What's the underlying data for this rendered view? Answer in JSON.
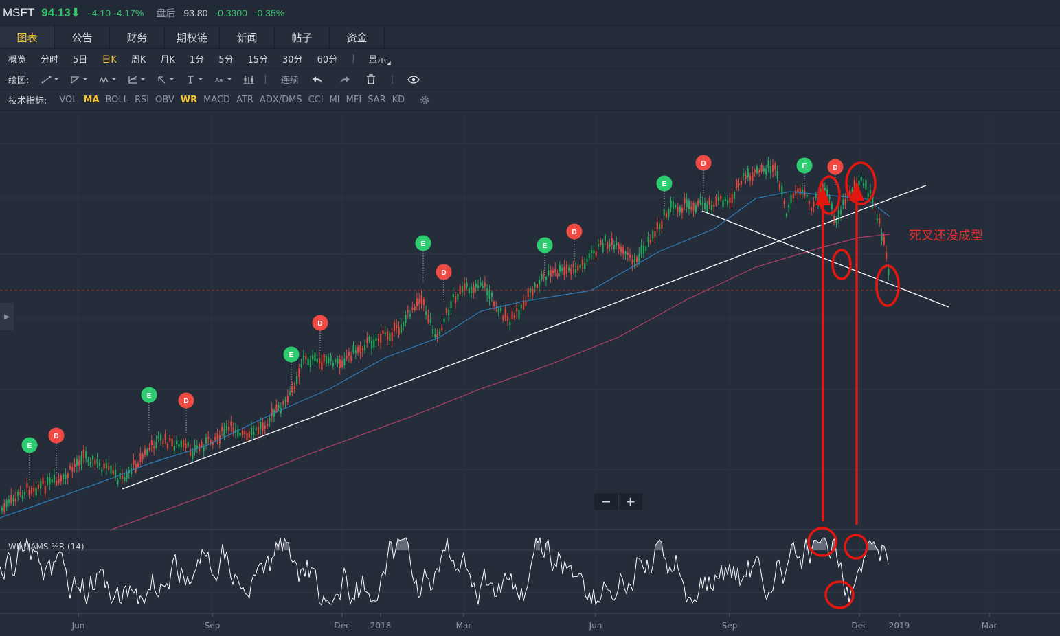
{
  "header": {
    "symbol": "MSFT",
    "price": "94.13⬇",
    "change": "-4.10",
    "change_pct": "-4.17%",
    "after_hours_label": "盘后",
    "after_hours_price": "93.80",
    "after_hours_change": "-0.3300",
    "after_hours_pct": "-0.35%"
  },
  "tabs": [
    "图表",
    "公告",
    "财务",
    "期权链",
    "新闻",
    "帖子",
    "资金"
  ],
  "periods": [
    "概览",
    "分时",
    "5日",
    "日K",
    "周K",
    "月K",
    "1分",
    "5分",
    "15分",
    "30分",
    "60分"
  ],
  "period_separator": "|",
  "display_label": "显示",
  "draw": {
    "label": "绘图:",
    "continuous": "连续",
    "tools": [
      "line-tool-icon",
      "ray-tool-icon",
      "pattern-tool-icon",
      "fib-tool-icon",
      "arrow-tool-icon",
      "text-tool-icon",
      "font-tool-icon",
      "candle-tool-icon"
    ],
    "actions": [
      "undo-icon",
      "redo-icon",
      "trash-icon",
      "eye-icon"
    ]
  },
  "indicators": {
    "label": "技术指标:",
    "items": [
      "VOL",
      "MA",
      "BOLL",
      "RSI",
      "OBV",
      "WR",
      "MACD",
      "ATR",
      "ADX/DMS",
      "CCI",
      "MI",
      "MFI",
      "SAR",
      "KD"
    ],
    "active": [
      "MA",
      "WR"
    ]
  },
  "chart": {
    "wr_label": "WILLIAMS %R (14)",
    "annotation": "死叉还没成型",
    "x_labels": [
      "Jun",
      "Sep",
      "Dec",
      "2018",
      "Mar",
      "Jun",
      "Sep",
      "Dec",
      "2019",
      "Mar"
    ],
    "markers": [
      "E",
      "D",
      "E",
      "D",
      "E",
      "D",
      "E",
      "D",
      "E",
      "D",
      "E",
      "D",
      "E",
      "D"
    ],
    "zoom_out": "−",
    "zoom_in": "+",
    "colors": {
      "up": "#26a65b",
      "down": "#e0463a",
      "accent": "#f2c230",
      "annotation": "#e0302b",
      "ma_short": "#2d7fb8",
      "ma_long": "#b2416b"
    }
  }
}
